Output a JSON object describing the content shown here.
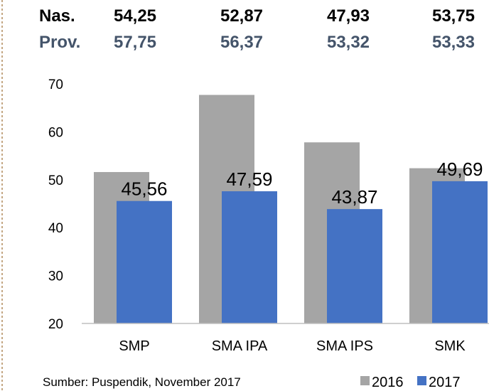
{
  "table": {
    "rows": [
      [
        "Nas.",
        "54,25",
        "52,87",
        "47,93",
        "53,75"
      ],
      [
        "Prov.",
        "57,75",
        "56,37",
        "53,32",
        "53,33"
      ]
    ]
  },
  "chart_data": {
    "type": "bar",
    "categories": [
      "SMP",
      "SMA IPA",
      "SMA IPS",
      "SMK"
    ],
    "series": [
      {
        "name": "2016",
        "color": "#a5a5a5",
        "values": [
          51.6,
          67.7,
          57.8,
          52.4
        ]
      },
      {
        "name": "2017",
        "color": "#4472c4",
        "values": [
          45.56,
          47.59,
          43.87,
          49.69
        ],
        "value_labels": [
          "45,56",
          "47,59",
          "43,87",
          "49,69"
        ]
      }
    ],
    "ylim": [
      20,
      70
    ],
    "yticks": [
      20,
      30,
      40,
      50,
      60,
      70
    ],
    "grid": false,
    "source": "Sumber: Puspendik, November 2017",
    "legend": "bottom-right"
  }
}
